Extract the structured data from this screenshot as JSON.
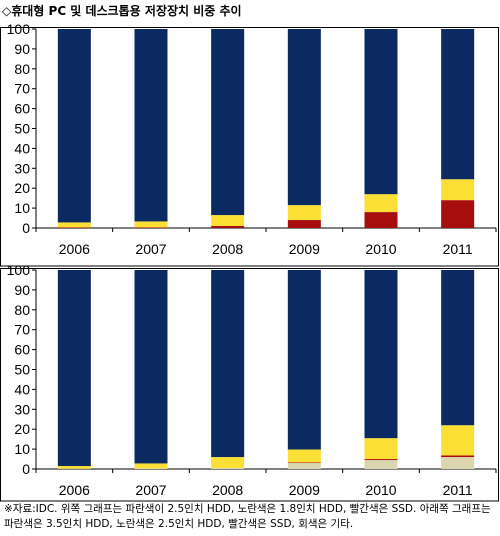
{
  "title": "◇휴대형 PC 및 데스크톱용 저장장치 비중 추이",
  "note": "※자료:IDC. 위쪽 그래프는 파란색이 2.5인치 HDD, 노란색은 1.8인치 HDD, 빨간색은 SSD. 아래쪽 그래프는 파란색은 3.5인치 HDD, 노란색은 2.5인치 HDD, 빨간색은 SSD, 회색은 기타.",
  "colors": {
    "blue": "#0b2a61",
    "yellow": "#fbdf34",
    "red": "#a80d0d",
    "gray": "#dcd6b0"
  },
  "chart_data": [
    {
      "type": "bar",
      "stacked": true,
      "categories": [
        "2006",
        "2007",
        "2008",
        "2009",
        "2010",
        "2011"
      ],
      "ylim": [
        0,
        100
      ],
      "yticks": [
        "0",
        "10",
        "20",
        "30",
        "40",
        "50",
        "60",
        "70",
        "80",
        "90",
        "100"
      ],
      "grid": false,
      "series": [
        {
          "color": "#a80d0d",
          "values": [
            0.3,
            0.3,
            1,
            4,
            8,
            14
          ]
        },
        {
          "color": "#fbdf34",
          "values": [
            2.5,
            3,
            5.5,
            7.5,
            9,
            10.5
          ]
        },
        {
          "color": "#0b2a61",
          "values": [
            97.2,
            96.7,
            93.5,
            88.5,
            83,
            75.5
          ]
        }
      ]
    },
    {
      "type": "bar",
      "stacked": true,
      "categories": [
        "2006",
        "2007",
        "2008",
        "2009",
        "2010",
        "2011"
      ],
      "ylim": [
        0,
        100
      ],
      "yticks": [
        "0",
        "10",
        "20",
        "30",
        "40",
        "50",
        "60",
        "70",
        "80",
        "90",
        "100"
      ],
      "grid": false,
      "series": [
        {
          "color": "#dcd6b0",
          "values": [
            0.2,
            0.3,
            0.5,
            3,
            4.5,
            6
          ]
        },
        {
          "color": "#a80d0d",
          "values": [
            0,
            0,
            0,
            0.3,
            0.5,
            0.8
          ]
        },
        {
          "color": "#fbdf34",
          "values": [
            1.3,
            2.5,
            5.5,
            6.5,
            10.5,
            15.2
          ]
        },
        {
          "color": "#0b2a61",
          "values": [
            98.5,
            97.2,
            94,
            90.2,
            84.5,
            78
          ]
        }
      ]
    }
  ]
}
